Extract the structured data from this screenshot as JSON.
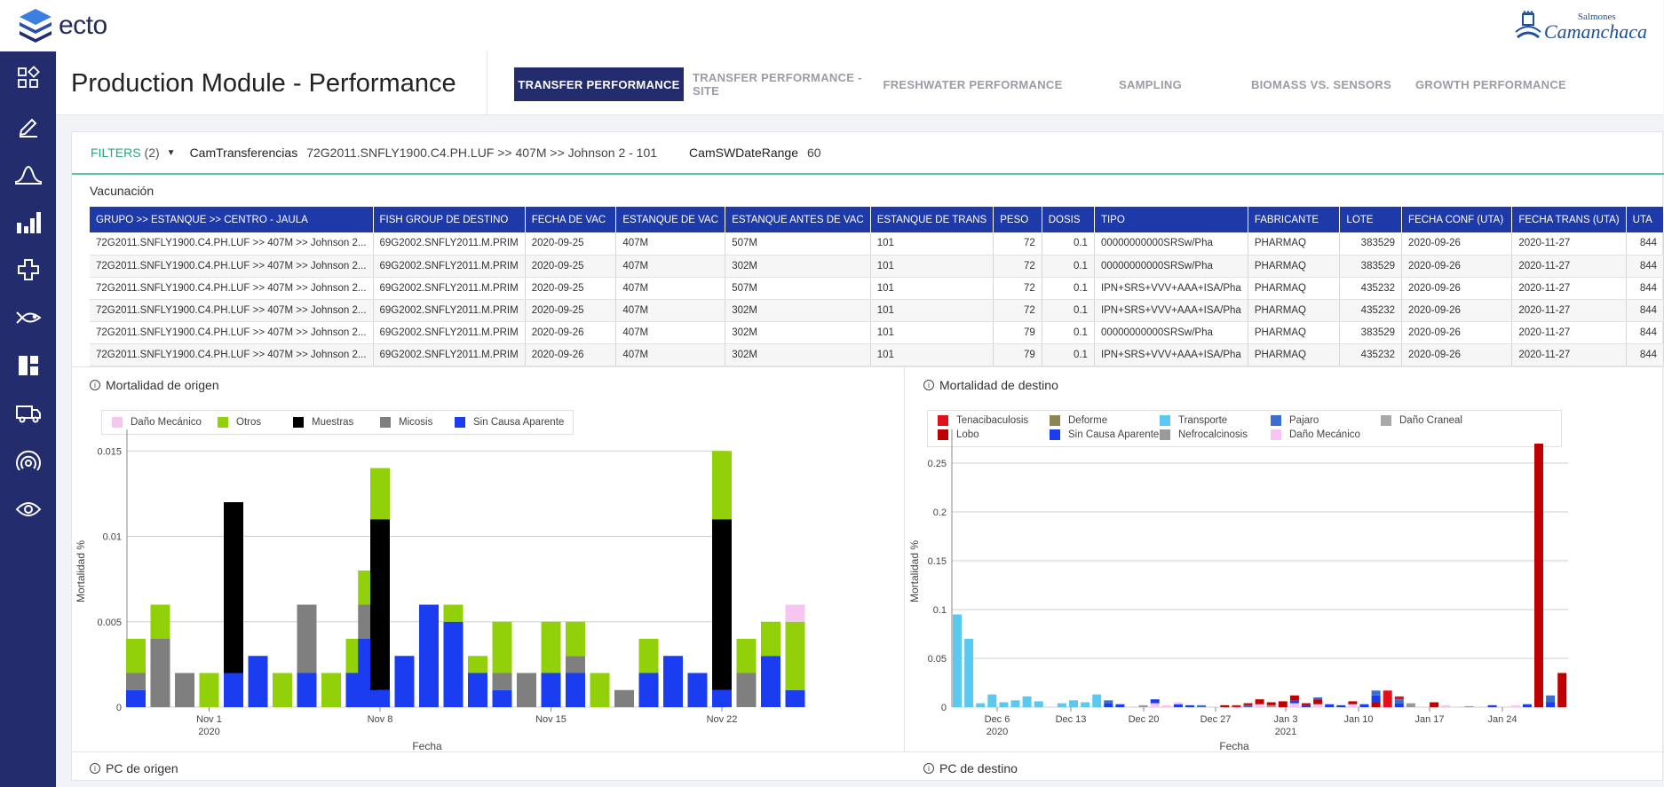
{
  "app": {
    "logo_text": "ecto",
    "brand_top": "Salmones",
    "brand_main": "Camanchaca"
  },
  "sidebar": {
    "items": [
      {
        "icon": "dashboard-grid-icon"
      },
      {
        "icon": "edit-icon"
      },
      {
        "icon": "bell-curve-icon"
      },
      {
        "icon": "bar-chart-icon"
      },
      {
        "icon": "health-cross-icon"
      },
      {
        "icon": "fish-icon"
      },
      {
        "icon": "layout-icon"
      },
      {
        "icon": "truck-icon"
      },
      {
        "icon": "sensor-icon"
      },
      {
        "icon": "eye-icon"
      }
    ]
  },
  "header": {
    "title": "Production Module - Performance",
    "tabs": [
      {
        "label": "TRANSFER PERFORMANCE",
        "active": true
      },
      {
        "label": "TRANSFER PERFORMANCE - SITE",
        "active": false
      },
      {
        "label": "FRESHWATER PERFORMANCE",
        "active": false
      },
      {
        "label": "SAMPLING",
        "active": false
      },
      {
        "label": "BIOMASS VS. SENSORS",
        "active": false
      },
      {
        "label": "GROWTH PERFORMANCE",
        "active": false
      }
    ]
  },
  "filters": {
    "label": "FILTERS",
    "count": "(2)",
    "items": [
      {
        "key": "CamTransferencias",
        "value": "72G2011.SNFLY1900.C4.PH.LUF >> 407M >> Johnson 2 - 101"
      },
      {
        "key": "CamSWDateRange",
        "value": "60"
      }
    ]
  },
  "vacunacion": {
    "title": "Vacunación",
    "columns": [
      "GRUPO >> ESTANQUE >> CENTRO - JAULA",
      "FISH GROUP DE DESTINO",
      "FECHA DE VAC",
      "ESTANQUE DE VAC",
      "ESTANQUE ANTES DE VAC",
      "ESTANQUE DE TRANS",
      "PESO",
      "DOSIS",
      "TIPO",
      "FABRICANTE",
      "LOTE",
      "FECHA CONF (UTA)",
      "FECHA TRANS (UTA)",
      "UTA"
    ],
    "rows": [
      [
        "72G2011.SNFLY1900.C4.PH.LUF >> 407M >> Johnson 2...",
        "69G2002.SNFLY2011.M.PRIM",
        "2020-09-25",
        "407M",
        "507M",
        "101",
        "72",
        "0.1",
        "00000000000SRSw/Pha",
        "PHARMAQ",
        "383529",
        "2020-09-26",
        "2020-11-27",
        "844"
      ],
      [
        "72G2011.SNFLY1900.C4.PH.LUF >> 407M >> Johnson 2...",
        "69G2002.SNFLY2011.M.PRIM",
        "2020-09-25",
        "407M",
        "302M",
        "101",
        "72",
        "0.1",
        "00000000000SRSw/Pha",
        "PHARMAQ",
        "383529",
        "2020-09-26",
        "2020-11-27",
        "844"
      ],
      [
        "72G2011.SNFLY1900.C4.PH.LUF >> 407M >> Johnson 2...",
        "69G2002.SNFLY2011.M.PRIM",
        "2020-09-25",
        "407M",
        "507M",
        "101",
        "72",
        "0.1",
        "IPN+SRS+VVV+AAA+ISA/Pha",
        "PHARMAQ",
        "435232",
        "2020-09-26",
        "2020-11-27",
        "844"
      ],
      [
        "72G2011.SNFLY1900.C4.PH.LUF >> 407M >> Johnson 2...",
        "69G2002.SNFLY2011.M.PRIM",
        "2020-09-25",
        "407M",
        "302M",
        "101",
        "72",
        "0.1",
        "IPN+SRS+VVV+AAA+ISA/Pha",
        "PHARMAQ",
        "435232",
        "2020-09-26",
        "2020-11-27",
        "844"
      ],
      [
        "72G2011.SNFLY1900.C4.PH.LUF >> 407M >> Johnson 2...",
        "69G2002.SNFLY2011.M.PRIM",
        "2020-09-26",
        "407M",
        "302M",
        "101",
        "79",
        "0.1",
        "00000000000SRSw/Pha",
        "PHARMAQ",
        "383529",
        "2020-09-26",
        "2020-11-27",
        "844"
      ],
      [
        "72G2011.SNFLY1900.C4.PH.LUF >> 407M >> Johnson 2...",
        "69G2002.SNFLY2011.M.PRIM",
        "2020-09-26",
        "407M",
        "302M",
        "101",
        "79",
        "0.1",
        "IPN+SRS+VVV+AAA+ISA/Pha",
        "PHARMAQ",
        "435232",
        "2020-09-26",
        "2020-11-27",
        "844"
      ]
    ]
  },
  "panels": {
    "origen_title": "Mortalidad de origen",
    "destino_title": "Mortalidad de destino",
    "pc_origen": "PC de origen",
    "pc_destino": "PC de destino"
  },
  "chart_data": [
    {
      "type": "bar",
      "stacked": true,
      "title": "Mortalidad de origen",
      "xlabel": "Fecha",
      "ylabel": "Mortalidad %",
      "ylim": [
        0,
        0.016
      ],
      "yticks": [
        "0",
        "0.005",
        "0.01",
        "0.015"
      ],
      "yticks_values": [
        0,
        0.005,
        0.01,
        0.015
      ],
      "xticks": [
        {
          "label": "Nov 1",
          "sub": "2020",
          "day": 1
        },
        {
          "label": "Nov 8",
          "sub": "",
          "day": 8
        },
        {
          "label": "Nov 15",
          "sub": "",
          "day": 15
        },
        {
          "label": "Nov 22",
          "sub": "",
          "day": 22
        }
      ],
      "legend": "top-left",
      "grid": true,
      "series": [
        {
          "name": "Sin Causa Aparente",
          "color": "#1a3df2",
          "values": [
            0.001,
            0,
            0,
            0,
            0.002,
            0.003,
            0,
            0.002,
            0,
            0.002,
            0.004,
            0.001,
            0.003,
            0.006,
            0.005,
            0.002,
            0.001,
            0,
            0.002,
            0.002,
            0,
            0,
            0.002,
            0.003,
            0.002,
            0.001,
            0,
            0.003,
            0.001
          ]
        },
        {
          "name": "Micosis",
          "color": "#7f7f7f",
          "values": [
            0.001,
            0.004,
            0.002,
            0,
            0,
            0,
            0,
            0.004,
            0,
            0,
            0.002,
            0,
            0,
            0,
            0,
            0,
            0.001,
            0.002,
            0,
            0.001,
            0,
            0.001,
            0,
            0,
            0,
            0,
            0.002,
            0,
            0
          ]
        },
        {
          "name": "Muestras",
          "color": "#000000",
          "values": [
            0,
            0,
            0,
            0,
            0.01,
            0,
            0,
            0,
            0,
            0,
            0,
            0.01,
            0,
            0,
            0,
            0,
            0,
            0,
            0,
            0,
            0,
            0,
            0,
            0,
            0,
            0.01,
            0,
            0,
            0
          ]
        },
        {
          "name": "Otros",
          "color": "#92d00a",
          "values": [
            0.002,
            0.002,
            0,
            0.002,
            0,
            0,
            0.002,
            0,
            0.002,
            0.002,
            0.002,
            0.003,
            0,
            0,
            0.001,
            0.001,
            0.003,
            0,
            0.003,
            0.002,
            0.002,
            0,
            0.002,
            0,
            0,
            0.004,
            0.002,
            0.002,
            0.004
          ]
        },
        {
          "name": "Daño Mecánico",
          "color": "#f6c6f0",
          "values": [
            0,
            0,
            0,
            0,
            0,
            0,
            0,
            0,
            0,
            0,
            0,
            0,
            0,
            0,
            0,
            0,
            0,
            0,
            0,
            0,
            0,
            0,
            0,
            0,
            0,
            0,
            0,
            0,
            0.001
          ]
        }
      ],
      "x_days": [
        -2,
        -1,
        0,
        1,
        2,
        3,
        4,
        5,
        6,
        7,
        7.5,
        8,
        9,
        10,
        11,
        12,
        13,
        14,
        15,
        16,
        17,
        18,
        19,
        20,
        21,
        22,
        23,
        24,
        25
      ]
    },
    {
      "type": "bar",
      "stacked": true,
      "title": "Mortalidad de destino",
      "xlabel": "Fecha",
      "ylabel": "Mortalidad %",
      "ylim": [
        0,
        0.28
      ],
      "yticks": [
        "0",
        "0.05",
        "0.1",
        "0.15",
        "0.2",
        "0.25"
      ],
      "yticks_values": [
        0,
        0.05,
        0.1,
        0.15,
        0.2,
        0.25
      ],
      "xticks": [
        {
          "label": "Dec 6",
          "sub": "2020"
        },
        {
          "label": "Dec 13",
          "sub": ""
        },
        {
          "label": "Dec 20",
          "sub": ""
        },
        {
          "label": "Dec 27",
          "sub": ""
        },
        {
          "label": "Jan 3",
          "sub": "2021"
        },
        {
          "label": "Jan 10",
          "sub": ""
        },
        {
          "label": "Jan 17",
          "sub": ""
        },
        {
          "label": "Jan 24",
          "sub": ""
        }
      ],
      "legend": "top-left",
      "grid": true,
      "series": [
        {
          "name": "Tenacibaculosis",
          "color": "#e3101c"
        },
        {
          "name": "Lobo",
          "color": "#c00000"
        },
        {
          "name": "Deforme",
          "color": "#8c8654"
        },
        {
          "name": "Sin Causa Aparente",
          "color": "#1a3df2"
        },
        {
          "name": "Transporte",
          "color": "#5bc8f0"
        },
        {
          "name": "Nefrocalcinosis",
          "color": "#9a9a9a"
        },
        {
          "name": "Pajaro",
          "color": "#3a6fd0"
        },
        {
          "name": "Daño Mecánico",
          "color": "#f6c6f0"
        },
        {
          "name": "Daño Craneal",
          "color": "#a8a8a8"
        }
      ],
      "bars": [
        {
          "i": 0,
          "stack": [
            [
              "#5bc8f0",
              0.095
            ]
          ]
        },
        {
          "i": 1,
          "stack": [
            [
              "#5bc8f0",
              0.07
            ]
          ]
        },
        {
          "i": 2,
          "stack": [
            [
              "#5bc8f0",
              0.004
            ]
          ]
        },
        {
          "i": 3,
          "stack": [
            [
              "#5bc8f0",
              0.013
            ]
          ]
        },
        {
          "i": 4,
          "stack": [
            [
              "#5bc8f0",
              0.005
            ]
          ]
        },
        {
          "i": 5,
          "stack": [
            [
              "#5bc8f0",
              0.007
            ]
          ]
        },
        {
          "i": 6,
          "stack": [
            [
              "#5bc8f0",
              0.011
            ]
          ]
        },
        {
          "i": 7,
          "stack": [
            [
              "#5bc8f0",
              0.006
            ]
          ]
        },
        {
          "i": 9,
          "stack": [
            [
              "#5bc8f0",
              0.004
            ]
          ]
        },
        {
          "i": 10,
          "stack": [
            [
              "#5bc8f0",
              0.007
            ]
          ]
        },
        {
          "i": 11,
          "stack": [
            [
              "#5bc8f0",
              0.005
            ]
          ]
        },
        {
          "i": 12,
          "stack": [
            [
              "#5bc8f0",
              0.013
            ]
          ]
        },
        {
          "i": 13,
          "stack": [
            [
              "#1a3df2",
              0.004
            ],
            [
              "#3a6fd0",
              0.003
            ]
          ]
        },
        {
          "i": 14,
          "stack": [
            [
              "#1a3df2",
              0.003
            ]
          ]
        },
        {
          "i": 16,
          "stack": [
            [
              "#9a9a9a",
              0.002
            ]
          ]
        },
        {
          "i": 17,
          "stack": [
            [
              "#f6c6f0",
              0.004
            ],
            [
              "#1a3df2",
              0.004
            ]
          ]
        },
        {
          "i": 18,
          "stack": [
            [
              "#f6c6f0",
              0.002
            ]
          ]
        },
        {
          "i": 19,
          "stack": [
            [
              "#1a3df2",
              0.003
            ],
            [
              "#f6c6f0",
              0.002
            ]
          ]
        },
        {
          "i": 20,
          "stack": [
            [
              "#1a3df2",
              0.002
            ]
          ]
        },
        {
          "i": 21,
          "stack": [
            [
              "#3a6fd0",
              0.002
            ]
          ]
        },
        {
          "i": 23,
          "stack": [
            [
              "#c00000",
              0.002
            ]
          ]
        },
        {
          "i": 24,
          "stack": [
            [
              "#e3101c",
              0.002
            ]
          ]
        },
        {
          "i": 25,
          "stack": [
            [
              "#3a6fd0",
              0.002
            ],
            [
              "#c00000",
              0.002
            ]
          ]
        },
        {
          "i": 26,
          "stack": [
            [
              "#f6c6f0",
              0.003
            ],
            [
              "#c00000",
              0.005
            ]
          ]
        },
        {
          "i": 27,
          "stack": [
            [
              "#9a9a9a",
              0.002
            ],
            [
              "#c00000",
              0.003
            ]
          ]
        },
        {
          "i": 28,
          "stack": [
            [
              "#c00000",
              0.006
            ]
          ]
        },
        {
          "i": 29,
          "stack": [
            [
              "#f6c6f0",
              0.004
            ],
            [
              "#1a3df2",
              0.003
            ],
            [
              "#c00000",
              0.005
            ]
          ]
        },
        {
          "i": 30,
          "stack": [
            [
              "#1a3df2",
              0.002
            ],
            [
              "#c00000",
              0.002
            ]
          ]
        },
        {
          "i": 31,
          "stack": [
            [
              "#f6c6f0",
              0.003
            ],
            [
              "#c00000",
              0.005
            ],
            [
              "#3a6fd0",
              0.002
            ]
          ]
        },
        {
          "i": 32,
          "stack": [
            [
              "#1a3df2",
              0.003
            ]
          ]
        },
        {
          "i": 33,
          "stack": [
            [
              "#1a3df2",
              0.002
            ]
          ]
        },
        {
          "i": 34,
          "stack": [
            [
              "#f6c6f0",
              0.003
            ],
            [
              "#c00000",
              0.003
            ]
          ]
        },
        {
          "i": 35,
          "stack": [
            [
              "#1a3df2",
              0.003
            ]
          ]
        },
        {
          "i": 36,
          "stack": [
            [
              "#c00000",
              0.005
            ],
            [
              "#1a3df2",
              0.007
            ],
            [
              "#3a6fd0",
              0.005
            ]
          ]
        },
        {
          "i": 37,
          "stack": [
            [
              "#e3101c",
              0.017
            ]
          ]
        },
        {
          "i": 38,
          "stack": [
            [
              "#1a3df2",
              0.004
            ],
            [
              "#3a6fd0",
              0.004
            ],
            [
              "#e3101c",
              0.003
            ]
          ]
        },
        {
          "i": 39,
          "stack": [
            [
              "#9a9a9a",
              0.004
            ]
          ]
        },
        {
          "i": 41,
          "stack": [
            [
              "#c00000",
              0.005
            ]
          ]
        },
        {
          "i": 42,
          "stack": [
            [
              "#f6c6f0",
              0.002
            ]
          ]
        },
        {
          "i": 44,
          "stack": [
            [
              "#9a9a9a",
              0.001
            ]
          ]
        },
        {
          "i": 46,
          "stack": [
            [
              "#1a3df2",
              0.002
            ]
          ]
        },
        {
          "i": 48,
          "stack": [
            [
              "#f6c6f0",
              0.002
            ]
          ]
        },
        {
          "i": 49,
          "stack": [
            [
              "#1a3df2",
              0.003
            ]
          ]
        },
        {
          "i": 50,
          "stack": [
            [
              "#c00000",
              0.27
            ]
          ]
        },
        {
          "i": 51,
          "stack": [
            [
              "#1a3df2",
              0.005
            ],
            [
              "#3a6fd0",
              0.007
            ]
          ]
        },
        {
          "i": 52,
          "stack": [
            [
              "#c00000",
              0.035
            ]
          ]
        }
      ]
    }
  ]
}
